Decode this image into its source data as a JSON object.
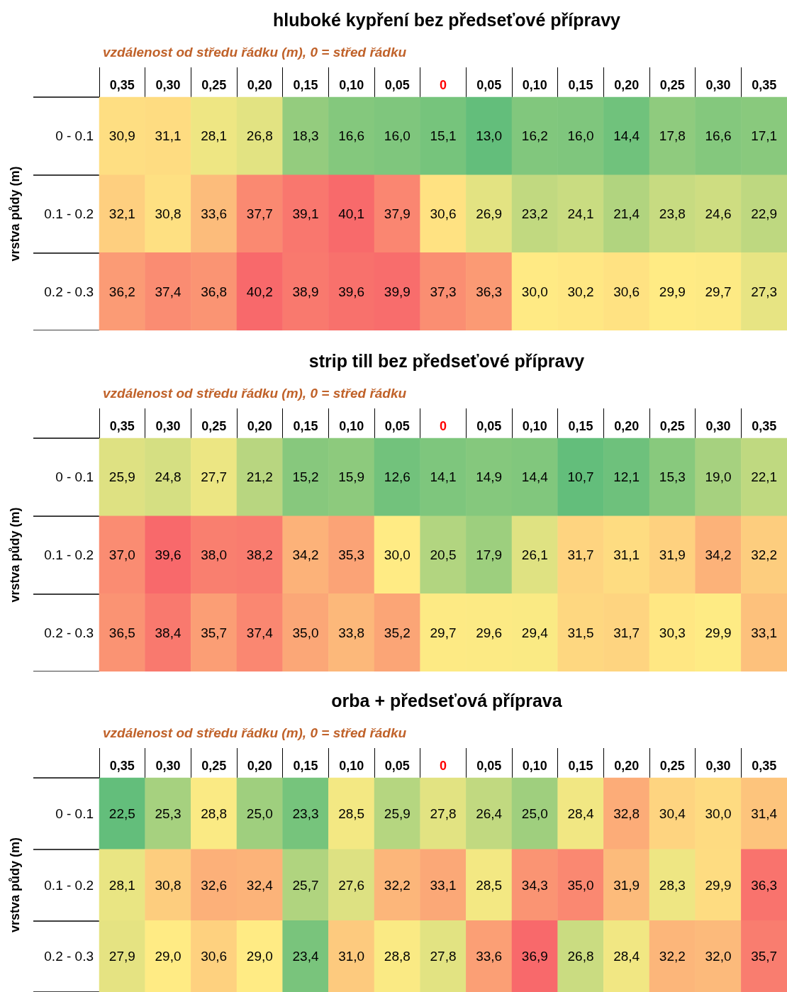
{
  "chart_data": [
    {
      "type": "heatmap",
      "title": "hluboké kypření bez předseťové přípravy",
      "xlabel": "vzdálenost od středu řádku (m), 0 = střed řádku",
      "ylabel": "vrstva půdy (m)",
      "categories": [
        "0,35",
        "0,30",
        "0,25",
        "0,20",
        "0,15",
        "0,10",
        "0,05",
        "0",
        "0,05",
        "0,10",
        "0,15",
        "0,20",
        "0,25",
        "0,30",
        "0,35"
      ],
      "y_categories": [
        "0 - 0.1",
        "0.1 - 0.2",
        "0.2 - 0.3"
      ],
      "cells": [
        [
          30.9,
          31.1,
          28.1,
          26.8,
          18.3,
          16.6,
          16.0,
          15.1,
          13.0,
          16.2,
          16.0,
          14.4,
          17.8,
          16.6,
          17.1
        ],
        [
          32.1,
          30.8,
          33.6,
          37.7,
          39.1,
          40.1,
          37.9,
          30.6,
          26.9,
          23.2,
          24.1,
          21.4,
          23.8,
          24.6,
          22.9
        ],
        [
          36.2,
          37.4,
          36.8,
          40.2,
          38.9,
          39.6,
          39.9,
          37.3,
          36.3,
          30.0,
          30.2,
          30.6,
          29.9,
          29.7,
          27.3
        ]
      ],
      "cell_labels": [
        [
          "30,9",
          "31,1",
          "28,1",
          "26,8",
          "18,3",
          "16,6",
          "16,0",
          "15,1",
          "13,0",
          "16,2",
          "16,0",
          "14,4",
          "17,8",
          "16,6",
          "17,1"
        ],
        [
          "32,1",
          "30,8",
          "33,6",
          "37,7",
          "39,1",
          "40,1",
          "37,9",
          "30,6",
          "26,9",
          "23,2",
          "24,1",
          "21,4",
          "23,8",
          "24,6",
          "22,9"
        ],
        [
          "36,2",
          "37,4",
          "36,8",
          "40,2",
          "38,9",
          "39,6",
          "39,9",
          "37,3",
          "36,3",
          "30,0",
          "30,2",
          "30,6",
          "29,9",
          "29,7",
          "27,3"
        ]
      ]
    },
    {
      "type": "heatmap",
      "title": "strip till bez předseťové přípravy",
      "xlabel": "vzdálenost od středu řádku (m), 0 = střed řádku",
      "ylabel": "vrstva půdy (m)",
      "categories": [
        "0,35",
        "0,30",
        "0,25",
        "0,20",
        "0,15",
        "0,10",
        "0,05",
        "0",
        "0,05",
        "0,10",
        "0,15",
        "0,20",
        "0,25",
        "0,30",
        "0,35"
      ],
      "y_categories": [
        "0 - 0.1",
        "0.1 - 0.2",
        "0.2 - 0.3"
      ],
      "cells": [
        [
          25.9,
          24.8,
          27.7,
          21.2,
          15.2,
          15.9,
          12.6,
          14.1,
          14.9,
          14.4,
          10.7,
          12.1,
          15.3,
          19.0,
          22.1
        ],
        [
          37.0,
          39.6,
          38.0,
          38.2,
          34.2,
          35.3,
          30.0,
          20.5,
          17.9,
          26.1,
          31.7,
          31.1,
          31.9,
          34.2,
          32.2
        ],
        [
          36.5,
          38.4,
          35.7,
          37.4,
          35.0,
          33.8,
          35.2,
          29.7,
          29.6,
          29.4,
          31.5,
          31.7,
          30.3,
          29.9,
          33.1
        ]
      ],
      "cell_labels": [
        [
          "25,9",
          "24,8",
          "27,7",
          "21,2",
          "15,2",
          "15,9",
          "12,6",
          "14,1",
          "14,9",
          "14,4",
          "10,7",
          "12,1",
          "15,3",
          "19,0",
          "22,1"
        ],
        [
          "37,0",
          "39,6",
          "38,0",
          "38,2",
          "34,2",
          "35,3",
          "30,0",
          "20,5",
          "17,9",
          "26,1",
          "31,7",
          "31,1",
          "31,9",
          "34,2",
          "32,2"
        ],
        [
          "36,5",
          "38,4",
          "35,7",
          "37,4",
          "35,0",
          "33,8",
          "35,2",
          "29,7",
          "29,6",
          "29,4",
          "31,5",
          "31,7",
          "30,3",
          "29,9",
          "33,1"
        ]
      ]
    },
    {
      "type": "heatmap",
      "title": "orba + předseťová příprava",
      "xlabel": "vzdálenost od středu řádku (m), 0 = střed řádku",
      "ylabel": "vrstva půdy (m)",
      "categories": [
        "0,35",
        "0,30",
        "0,25",
        "0,20",
        "0,15",
        "0,10",
        "0,05",
        "0",
        "0,05",
        "0,10",
        "0,15",
        "0,20",
        "0,25",
        "0,30",
        "0,35"
      ],
      "y_categories": [
        "0 - 0.1",
        "0.1 - 0.2",
        "0.2 - 0.3"
      ],
      "cells": [
        [
          22.5,
          25.3,
          28.8,
          25.0,
          23.3,
          28.5,
          25.9,
          27.8,
          26.4,
          25.0,
          28.4,
          32.8,
          30.4,
          30.0,
          31.4
        ],
        [
          28.1,
          30.8,
          32.6,
          32.4,
          25.7,
          27.6,
          32.2,
          33.1,
          28.5,
          34.3,
          35.0,
          31.9,
          28.3,
          29.9,
          36.3
        ],
        [
          27.9,
          29.0,
          30.6,
          29.0,
          23.4,
          31.0,
          28.8,
          27.8,
          33.6,
          36.9,
          26.8,
          28.4,
          32.2,
          32.0,
          35.7
        ]
      ],
      "cell_labels": [
        [
          "22,5",
          "25,3",
          "28,8",
          "25,0",
          "23,3",
          "28,5",
          "25,9",
          "27,8",
          "26,4",
          "25,0",
          "28,4",
          "32,8",
          "30,4",
          "30,0",
          "31,4"
        ],
        [
          "28,1",
          "30,8",
          "32,6",
          "32,4",
          "25,7",
          "27,6",
          "32,2",
          "33,1",
          "28,5",
          "34,3",
          "35,0",
          "31,9",
          "28,3",
          "29,9",
          "36,3"
        ],
        [
          "27,9",
          "29,0",
          "30,6",
          "29,0",
          "23,4",
          "31,0",
          "28,8",
          "27,8",
          "33,6",
          "36,9",
          "26,8",
          "28,4",
          "32,2",
          "32,0",
          "35,7"
        ]
      ]
    }
  ]
}
